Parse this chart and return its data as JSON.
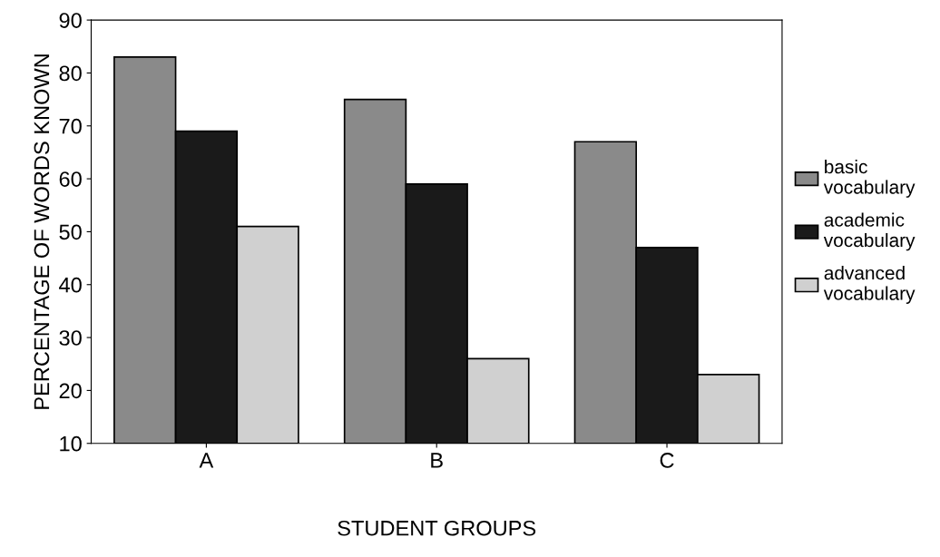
{
  "chart_data": {
    "type": "bar",
    "xlabel": "STUDENT GROUPS",
    "ylabel": "PERCENTAGE OF WORDS KNOWN",
    "categories": [
      "A",
      "B",
      "C"
    ],
    "series": [
      {
        "name": "basic vocabulary",
        "color": "#8a8a8a",
        "values": [
          83,
          75,
          67
        ]
      },
      {
        "name": "academic vocabulary",
        "color": "#1a1a1a",
        "values": [
          69,
          59,
          47
        ]
      },
      {
        "name": "advanced vocabulary",
        "color": "#d0d0d0",
        "values": [
          51,
          26,
          23
        ]
      }
    ],
    "ylim": [
      10,
      90
    ],
    "yticks": [
      10,
      20,
      30,
      40,
      50,
      60,
      70,
      80,
      90
    ],
    "grid": false,
    "legend": "right"
  }
}
